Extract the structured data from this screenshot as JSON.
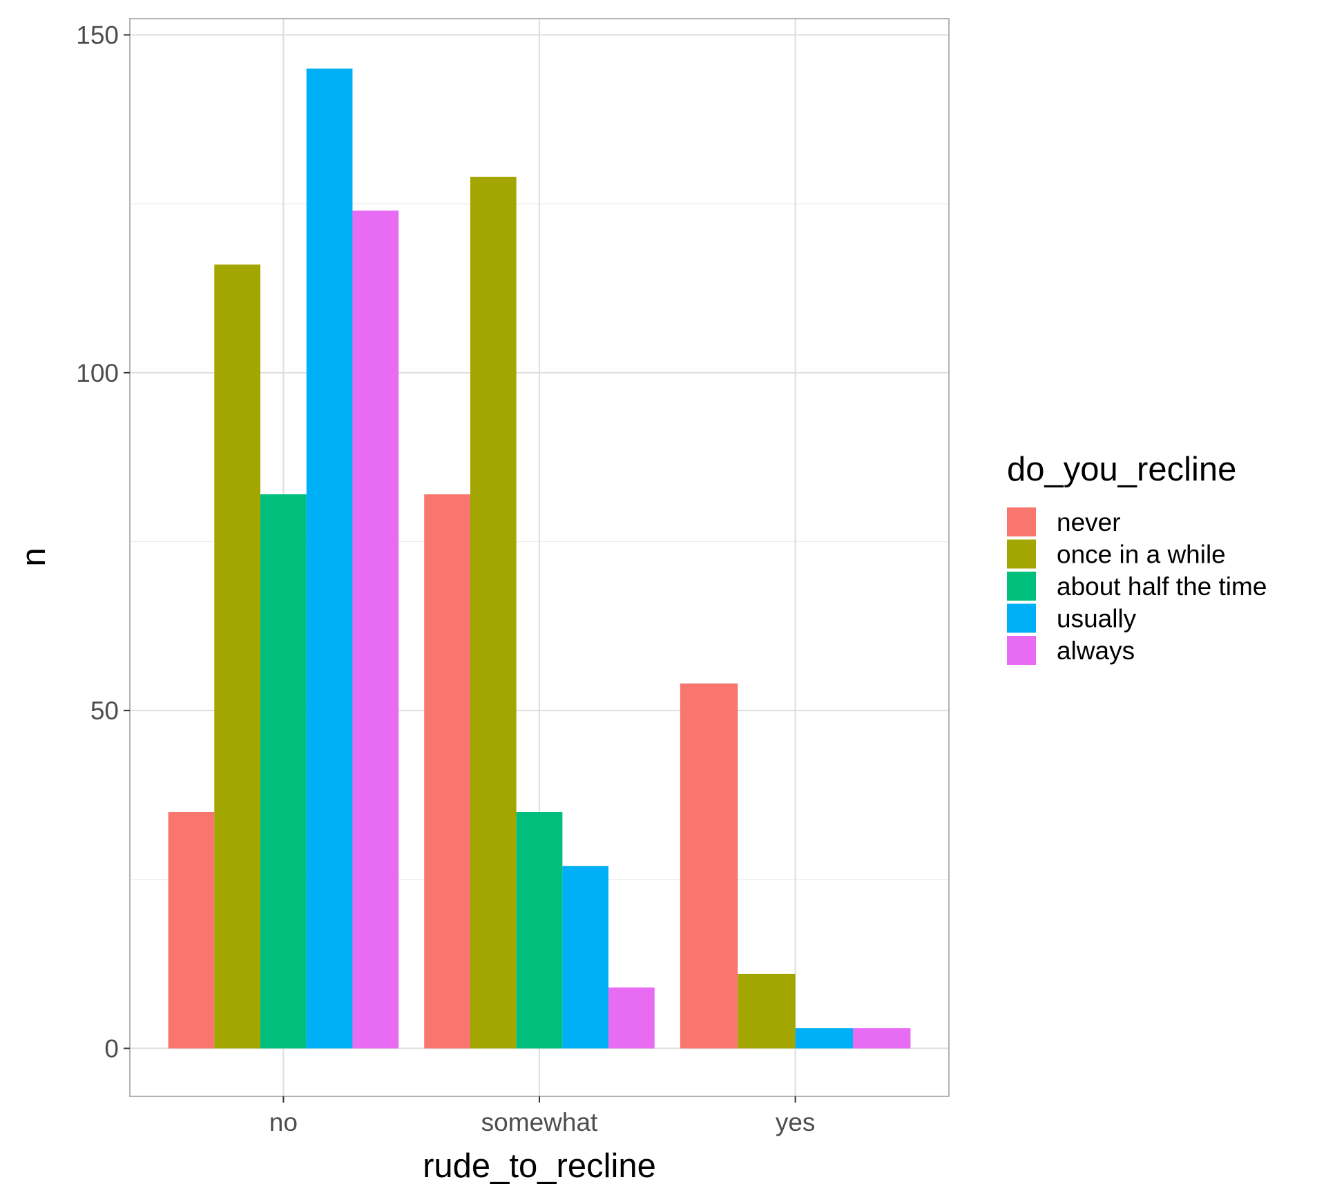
{
  "chart_data": {
    "type": "bar",
    "xlabel": "rude_to_recline",
    "ylabel": "n",
    "ylim": [
      -7.1,
      152.4
    ],
    "yticks": [
      0,
      50,
      100,
      150
    ],
    "grid": true,
    "legend_position": "right",
    "legend_title": "do_you_recline",
    "categories": [
      "no",
      "somewhat",
      "yes"
    ],
    "series": [
      {
        "name": "never",
        "color": "#F8766D",
        "values": [
          35,
          82,
          54
        ]
      },
      {
        "name": "once in a while",
        "color": "#A3A500",
        "values": [
          116,
          129,
          11
        ]
      },
      {
        "name": "about half the time",
        "color": "#00BF7D",
        "values": [
          82,
          35,
          null
        ]
      },
      {
        "name": "usually",
        "color": "#00B0F6",
        "values": [
          145,
          27,
          3
        ]
      },
      {
        "name": "always",
        "color": "#E76BF3",
        "values": [
          124,
          9,
          3
        ]
      }
    ]
  }
}
